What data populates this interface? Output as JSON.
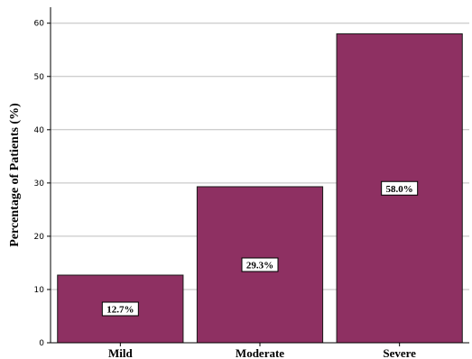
{
  "chart_data": {
    "type": "bar",
    "categories": [
      "Mild",
      "Moderate",
      "Severe"
    ],
    "values": [
      12.7,
      29.3,
      58.0
    ],
    "data_labels": [
      "12.7%",
      "29.3%",
      "58.0%"
    ],
    "title": "",
    "xlabel": "",
    "ylabel": "Percentage of Patients (%)",
    "ylim": [
      0,
      63
    ],
    "yticks": [
      0,
      10,
      20,
      30,
      40,
      50,
      60
    ],
    "grid": true,
    "bar_color": "#8e3062",
    "bar_edge_color": "#1a1a1a"
  }
}
